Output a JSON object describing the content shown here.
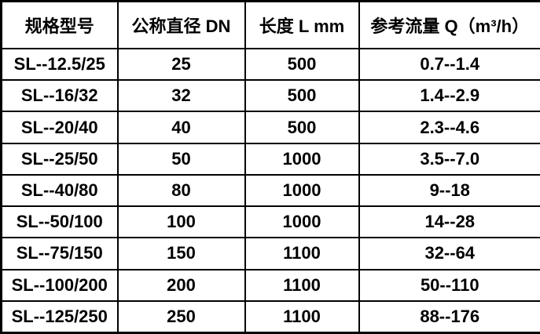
{
  "table": {
    "headers": [
      "规格型号",
      "公称直径 DN",
      "长度 L mm",
      "参考流量 Q（m³/h）"
    ],
    "rows": [
      [
        "SL--12.5/25",
        "25",
        "500",
        "0.7--1.4"
      ],
      [
        "SL--16/32",
        "32",
        "500",
        "1.4--2.9"
      ],
      [
        "SL--20/40",
        "40",
        "500",
        "2.3--4.6"
      ],
      [
        "SL--25/50",
        "50",
        "1000",
        "3.5--7.0"
      ],
      [
        "SL--40/80",
        "80",
        "1000",
        "9--18"
      ],
      [
        "SL--50/100",
        "100",
        "1000",
        "14--28"
      ],
      [
        "SL--75/150",
        "150",
        "1100",
        "32--64"
      ],
      [
        "SL--100/200",
        "200",
        "1100",
        "50--110"
      ],
      [
        "SL--125/250",
        "250",
        "1100",
        "88--176"
      ]
    ],
    "colors": {
      "border": "#000000",
      "text": "#000000",
      "background": "#ffffff"
    }
  }
}
